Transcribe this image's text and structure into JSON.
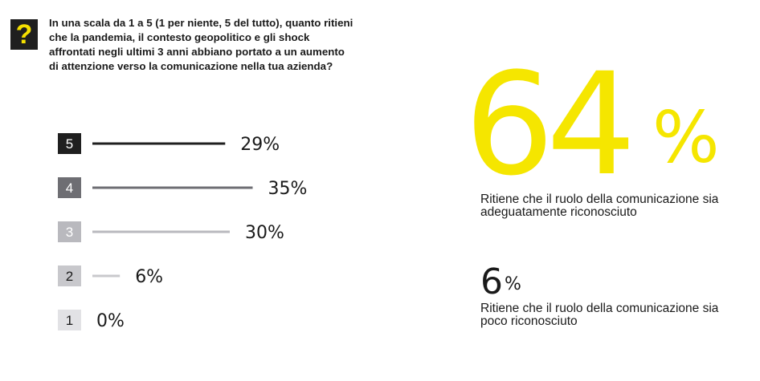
{
  "question": {
    "icon": "question-mark-icon",
    "text": "In una scala da 1 a 5 (1 per niente, 5 del tutto), quanto ritieni che la pandemia, il contesto geopolitico e gli shock affrontati negli ultimi 3 anni abbiano portato a un aumento di attenzione verso la comunicazione nella tua azienda?"
  },
  "chart_data": {
    "type": "bar",
    "orientation": "horizontal",
    "categories": [
      "5",
      "4",
      "3",
      "2",
      "1"
    ],
    "values": [
      29,
      35,
      30,
      6,
      0
    ],
    "value_labels": [
      "29%",
      "35%",
      "30%",
      "6%",
      "0%"
    ],
    "colors": [
      "#1f1f1f",
      "#6e6e73",
      "#b9b9be",
      "#c8c8cc",
      "#e2e2e5"
    ],
    "label_colors": [
      "#ffffff",
      "#ffffff",
      "#ffffff",
      "#1a1a1a",
      "#1a1a1a"
    ]
  },
  "highlights": {
    "primary": {
      "value": "64",
      "unit": "%",
      "description": "Ritiene che il ruolo della comunicazione sia adeguatamente riconosciuto",
      "color": "#f5e600"
    },
    "secondary": {
      "value": "6",
      "unit": "%",
      "description": "Ritiene che il ruolo della comunicazione sia poco riconosciuto"
    }
  }
}
